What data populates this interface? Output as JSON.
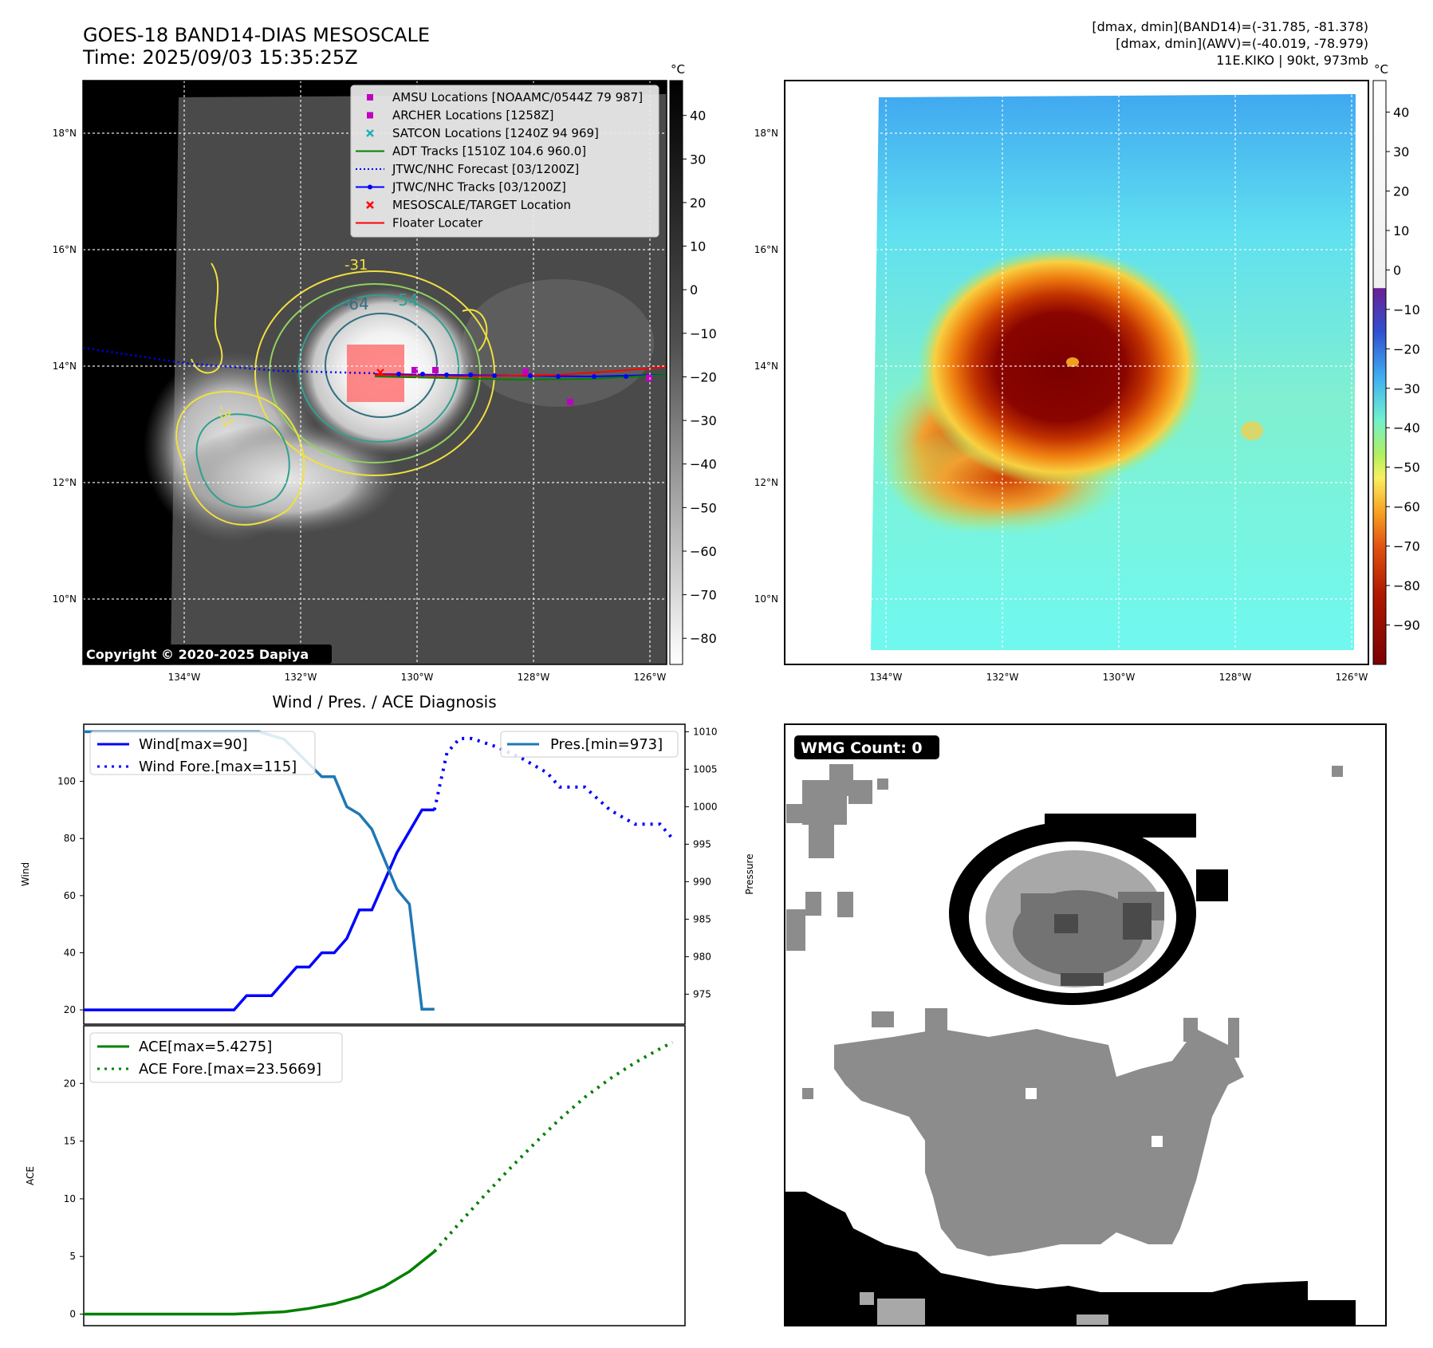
{
  "header": {
    "title": "GOES-18 BAND14-DIAS MESOSCALE",
    "time": "Time: 2025/09/03 15:35:25Z",
    "info_line1": "[dmax, dmin](BAND14)=(-31.785, -81.378)",
    "info_line2": "[dmax, dmin](AWV)=(-40.019, -78.979)",
    "info_line3": "11E.KIKO | 90kt, 973mb"
  },
  "copyright": "Copyright © 2020-2025 Dapiya",
  "map": {
    "lat_labels": [
      "18°N",
      "16°N",
      "14°N",
      "12°N",
      "10°N"
    ],
    "lon_labels": [
      "134°W",
      "132°W",
      "130°W",
      "128°W",
      "126°W"
    ],
    "contour_labels": [
      "-31",
      "-64",
      "-54",
      "-31",
      "-31"
    ]
  },
  "legend_map": [
    {
      "label": "AMSU Locations [NOAAMC/0544Z 79 987]",
      "color": "#c000c0",
      "marker": "square"
    },
    {
      "label": "ARCHER Locations [1258Z]",
      "color": "#c000c0",
      "marker": "square"
    },
    {
      "label": "SATCON Locations [1240Z 94 969]",
      "color": "#20b0b0",
      "marker": "x"
    },
    {
      "label": "ADT Tracks [1510Z 104.6 960.0]",
      "color": "#008000",
      "marker": "line"
    },
    {
      "label": "JTWC/NHC Forecast [03/1200Z]",
      "color": "#0000ff",
      "marker": "dotted"
    },
    {
      "label": "JTWC/NHC Tracks [03/1200Z]",
      "color": "#0000ff",
      "marker": "line-dot"
    },
    {
      "label": "MESOSCALE/TARGET Location",
      "color": "#ff0000",
      "marker": "x"
    },
    {
      "label": "Floater Locater",
      "color": "#ff0000",
      "marker": "line"
    }
  ],
  "colorbar_gray": {
    "unit": "°C",
    "ticks": [
      "40",
      "30",
      "20",
      "10",
      "0",
      "−10",
      "−20",
      "−30",
      "−40",
      "−50",
      "−60",
      "−70",
      "−80"
    ]
  },
  "colorbar_color": {
    "unit": "°C",
    "ticks": [
      "40",
      "30",
      "20",
      "10",
      "0",
      "−10",
      "−20",
      "−30",
      "−40",
      "−50",
      "−60",
      "−70",
      "−80",
      "−90"
    ]
  },
  "wmg_badge": "WMG Count: 0",
  "colors": {
    "wind": "#0000ff",
    "pressure": "#1f77b4",
    "ace": "#008000"
  },
  "chart_data": [
    {
      "type": "line",
      "title": "Wind / Pres. / ACE Diagnosis",
      "ylabel": "Wind",
      "y2label": "Pressure",
      "ylim": [
        15,
        120
      ],
      "y2lim": [
        971,
        1011
      ],
      "yticks": [
        20,
        40,
        60,
        80,
        100
      ],
      "y2ticks": [
        975,
        980,
        985,
        990,
        995,
        1000,
        1005,
        1010
      ],
      "xlim": [
        0,
        48
      ],
      "series": [
        {
          "name": "Wind[max=90]",
          "axis": "left",
          "style": "solid",
          "x": [
            0,
            12,
            13,
            15,
            17,
            18,
            19,
            20,
            21,
            22,
            23,
            24,
            25,
            27,
            28
          ],
          "values": [
            20,
            20,
            25,
            25,
            35,
            35,
            40,
            40,
            45,
            55,
            55,
            65,
            75,
            90,
            90
          ]
        },
        {
          "name": "Wind Fore.[max=115]",
          "axis": "left",
          "style": "dotted",
          "x": [
            28,
            29,
            30,
            31,
            33,
            35,
            37,
            38,
            40,
            42,
            44,
            46,
            47
          ],
          "values": [
            90,
            110,
            115,
            115,
            112,
            108,
            103,
            98,
            98,
            90,
            85,
            85,
            80
          ]
        },
        {
          "name": "Pres.[min=973]",
          "axis": "right",
          "style": "solid",
          "x": [
            0,
            14,
            16,
            19,
            20,
            21,
            22,
            23,
            24,
            25,
            26,
            27,
            28
          ],
          "values": [
            1010,
            1010,
            1009,
            1004,
            1004,
            1000,
            999,
            997,
            993,
            989,
            987,
            973,
            973
          ]
        }
      ]
    },
    {
      "type": "line",
      "ylabel": "ACE",
      "ylim": [
        -1,
        25
      ],
      "yticks": [
        0,
        5,
        10,
        15,
        20
      ],
      "xlim": [
        0,
        48
      ],
      "series": [
        {
          "name": "ACE[max=5.4275]",
          "style": "solid",
          "x": [
            0,
            6,
            12,
            16,
            18,
            20,
            22,
            24,
            26,
            28
          ],
          "values": [
            0,
            0,
            0,
            0.2,
            0.5,
            0.9,
            1.5,
            2.4,
            3.7,
            5.4275
          ]
        },
        {
          "name": "ACE Fore.[max=23.5669]",
          "style": "dotted",
          "x": [
            28,
            30,
            32,
            34,
            36,
            38,
            40,
            42,
            44,
            46,
            47
          ],
          "values": [
            5.4275,
            7.9,
            10.3,
            12.6,
            14.8,
            16.9,
            18.8,
            20.4,
            21.8,
            23.0,
            23.5669
          ]
        }
      ]
    }
  ]
}
